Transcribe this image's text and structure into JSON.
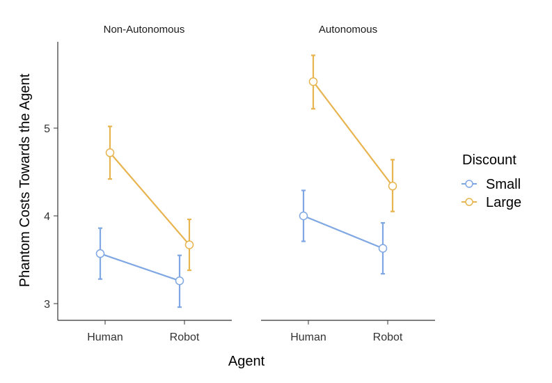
{
  "chart_data": {
    "type": "line",
    "xlabel": "Agent",
    "ylabel": "Phantom Costs Towards the Agent",
    "ylim": [
      2.8,
      6.0
    ],
    "yticks": [
      3,
      4,
      5
    ],
    "categories": [
      "Human",
      "Robot"
    ],
    "legend": {
      "title": "Discount",
      "position": "right"
    },
    "panels": [
      {
        "title": "Non-Autonomous",
        "series": [
          {
            "name": "Small",
            "color": "#7fa7e3",
            "values": [
              3.57,
              3.26
            ],
            "lower": [
              3.28,
              2.96
            ],
            "upper": [
              3.86,
              3.55
            ]
          },
          {
            "name": "Large",
            "color": "#e8b44f",
            "values": [
              4.72,
              3.67
            ],
            "lower": [
              4.42,
              3.38
            ],
            "upper": [
              5.02,
              3.96
            ]
          }
        ]
      },
      {
        "title": "Autonomous",
        "series": [
          {
            "name": "Small",
            "color": "#7fa7e3",
            "values": [
              4.0,
              3.63
            ],
            "lower": [
              3.71,
              3.34
            ],
            "upper": [
              4.29,
              3.92
            ]
          },
          {
            "name": "Large",
            "color": "#e8b44f",
            "values": [
              5.53,
              4.34
            ],
            "lower": [
              5.22,
              4.05
            ],
            "upper": [
              5.83,
              4.64
            ]
          }
        ]
      }
    ]
  }
}
